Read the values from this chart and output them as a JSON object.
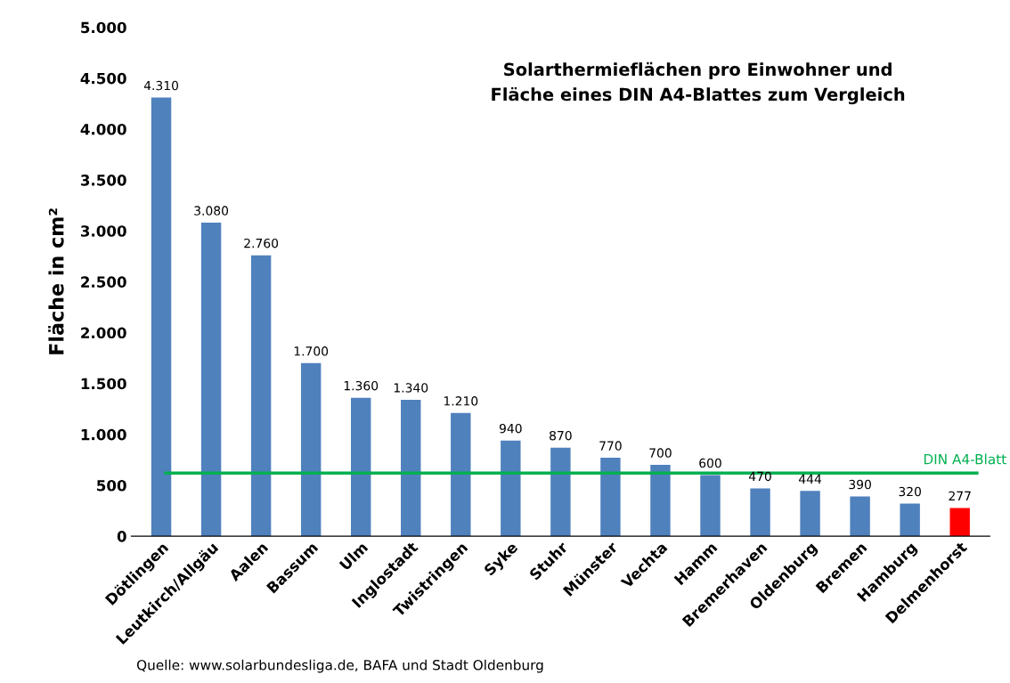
{
  "chart_data": {
    "type": "bar",
    "title": "Solarthermieflächen pro Einwohner und\nFläche eines DIN A4-Blattes zum Vergleich",
    "ylabel": "Fläche in cm²",
    "categories": [
      "Dötlingen",
      "Leutkirch/Allgäu",
      "Aalen",
      "Bassum",
      "Ulm",
      "Inglostadt",
      "Twistringen",
      "Syke",
      "Stuhr",
      "Münster",
      "Vechta",
      "Hamm",
      "Bremerhaven",
      "Oldenburg",
      "Bremen",
      "Hamburg",
      "Delmenhorst"
    ],
    "values": [
      4310,
      3080,
      2760,
      1700,
      1360,
      1340,
      1210,
      940,
      870,
      770,
      700,
      600,
      470,
      444,
      390,
      320,
      277
    ],
    "value_labels": [
      "4.310",
      "3.080",
      "2.760",
      "1.700",
      "1.360",
      "1.340",
      "1.210",
      "940",
      "870",
      "770",
      "700",
      "600",
      "470",
      "444",
      "390",
      "320",
      "277"
    ],
    "colors": [
      "#4f81bd",
      "#4f81bd",
      "#4f81bd",
      "#4f81bd",
      "#4f81bd",
      "#4f81bd",
      "#4f81bd",
      "#4f81bd",
      "#4f81bd",
      "#4f81bd",
      "#4f81bd",
      "#4f81bd",
      "#4f81bd",
      "#4f81bd",
      "#4f81bd",
      "#4f81bd",
      "#ff0000"
    ],
    "ylim": [
      0,
      5000
    ],
    "yticks": [
      {
        "value": 0,
        "label": "0"
      },
      {
        "value": 500,
        "label": "500"
      },
      {
        "value": 1000,
        "label": "1.000"
      },
      {
        "value": 1500,
        "label": "1.500"
      },
      {
        "value": 2000,
        "label": "2.000"
      },
      {
        "value": 2500,
        "label": "2.500"
      },
      {
        "value": 3000,
        "label": "3.000"
      },
      {
        "value": 3500,
        "label": "3.500"
      },
      {
        "value": 4000,
        "label": "4.000"
      },
      {
        "value": 4500,
        "label": "4.500"
      },
      {
        "value": 5000,
        "label": "5.000"
      }
    ],
    "ref_lines": [
      {
        "axis": "y",
        "value": 620,
        "label": "DIN A4-Blatt",
        "color": "#00b050"
      }
    ],
    "annotations": [
      "Quelle: www.solarbundesliga.de, BAFA und Stadt Oldenburg"
    ],
    "grid": false,
    "legend": false
  }
}
